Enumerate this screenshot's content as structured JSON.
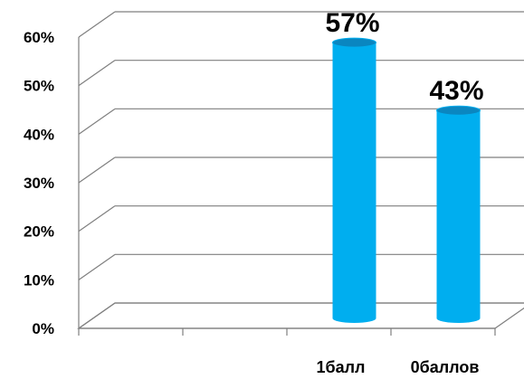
{
  "chart_data": {
    "type": "bar",
    "style": "3d-cylinder",
    "categories": [
      "",
      "",
      "1балл",
      "0баллов"
    ],
    "values": [
      null,
      null,
      57,
      43
    ],
    "data_labels": [
      "",
      "",
      "57%",
      "43%"
    ],
    "y_ticks": [
      "0%",
      "10%",
      "20%",
      "30%",
      "40%",
      "50%",
      "60%"
    ],
    "ylim": [
      0,
      60
    ],
    "grid": true,
    "bar_color": "#00AEEF",
    "bar_top_color": "#0A86C0",
    "title": "",
    "xlabel": "",
    "ylabel": ""
  }
}
